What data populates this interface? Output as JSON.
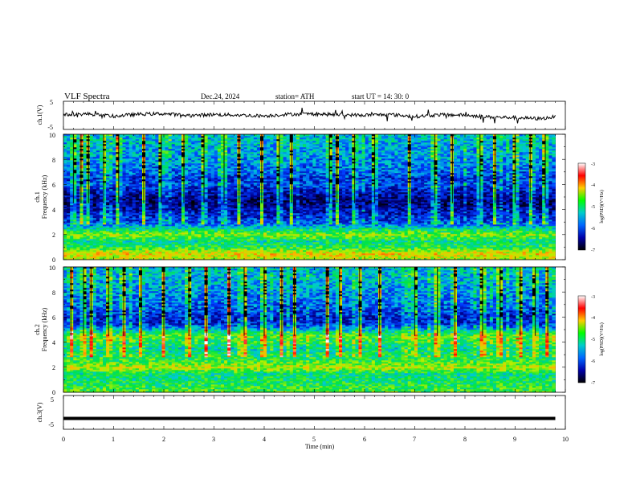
{
  "header": {
    "title": "VLF  Spectra",
    "date": "Dec.24, 2024",
    "station": "station= ATH",
    "start": "start  UT  =   14: 30: 0"
  },
  "colorbar": {
    "label": "log(PSD)(V²/Hz)",
    "ticks": [
      "-3",
      "-4",
      "-5",
      "-6",
      "-7"
    ],
    "colors": [
      "#ffffff",
      "#ff0000",
      "#ffcc00",
      "#00ff00",
      "#00cccc",
      "#0066ff",
      "#0000aa",
      "#000000"
    ]
  },
  "chart_data": [
    {
      "type": "line",
      "id": "ch1-waveform",
      "ylabel": "ch.1(V)",
      "ylim": [
        -5,
        5
      ],
      "yticks": [
        "5",
        "-5"
      ],
      "x": [
        0,
        0.5,
        1,
        1.5,
        2,
        2.5,
        3,
        3.5,
        4,
        4.5,
        5,
        5.5,
        6,
        6.5,
        7,
        7.5,
        8,
        8.5,
        9,
        9.5,
        9.8
      ],
      "series": [
        {
          "values": [
            0.2,
            0.5,
            -0.3,
            0.4,
            0.6,
            -0.1,
            0.3,
            0.1,
            -0.2,
            0.4,
            0.5,
            0.2,
            0.1,
            0.3,
            -0.4,
            0.2,
            0.1,
            -0.6,
            -0.8,
            -1.2,
            -0.5
          ]
        }
      ]
    },
    {
      "type": "heatmap",
      "id": "ch1-spectrogram",
      "ylabel": "Frequency (kHz)",
      "channel_label": "ch.1",
      "ylim": [
        0,
        10
      ],
      "yticks": [
        "0",
        "2",
        "4",
        "6",
        "8",
        "10"
      ],
      "xlim": [
        0,
        9.8
      ],
      "profile_freq_khz": [
        0,
        0.5,
        1,
        1.5,
        2,
        2.5,
        3,
        3.5,
        4,
        4.5,
        5,
        5.5,
        6,
        6.5,
        7,
        7.5,
        8,
        8.5,
        9,
        9.5,
        10
      ],
      "profile_log_psd": [
        -4.5,
        -4.2,
        -5.0,
        -5.2,
        -4.6,
        -5.3,
        -6.0,
        -6.2,
        -6.4,
        -6.6,
        -6.5,
        -6.3,
        -6.0,
        -6.1,
        -5.9,
        -5.8,
        -5.7,
        -5.6,
        -5.6,
        -5.5,
        -5.5
      ],
      "impulse_times_min": [
        0.2,
        0.35,
        0.5,
        0.8,
        1.1,
        1.6,
        1.95,
        2.4,
        2.8,
        3.2,
        3.5,
        3.95,
        4.3,
        4.55,
        5.3,
        5.45,
        5.8,
        6.2,
        6.9,
        7.4,
        7.75,
        8.3,
        8.6,
        9.0,
        9.3,
        9.6
      ]
    },
    {
      "type": "heatmap",
      "id": "ch2-spectrogram",
      "ylabel": "Frequency (kHz)",
      "channel_label": "ch.2",
      "ylim": [
        0,
        10
      ],
      "yticks": [
        "0",
        "2",
        "4",
        "6",
        "8",
        "10"
      ],
      "xlim": [
        0,
        9.8
      ],
      "profile_freq_khz": [
        0,
        0.5,
        1,
        1.5,
        2,
        2.5,
        3,
        3.5,
        4,
        4.5,
        5,
        5.5,
        6,
        6.5,
        7,
        7.5,
        8,
        8.5,
        9,
        9.5,
        10
      ],
      "profile_log_psd": [
        -4.8,
        -5.0,
        -5.1,
        -5.2,
        -4.4,
        -4.9,
        -5.1,
        -5.3,
        -5.0,
        -4.8,
        -5.5,
        -6.2,
        -6.2,
        -6.0,
        -5.9,
        -5.8,
        -5.7,
        -5.6,
        -5.5,
        -5.5,
        -5.5
      ],
      "impulse_times_min": [
        0.15,
        0.4,
        0.55,
        0.9,
        1.2,
        1.55,
        2.0,
        2.5,
        2.85,
        3.3,
        3.6,
        4.0,
        4.35,
        4.6,
        5.25,
        5.5,
        5.9,
        6.3,
        7.0,
        7.45,
        7.8,
        8.35,
        8.7,
        9.1,
        9.4,
        9.65
      ]
    },
    {
      "type": "line",
      "id": "ch3-waveform",
      "ylabel": "ch.3(V)",
      "ylim": [
        -5,
        5
      ],
      "yticks": [
        "5",
        "-5"
      ],
      "x": [
        0,
        9.8
      ],
      "series": [
        {
          "values": [
            -1.8,
            -1.8
          ]
        }
      ]
    }
  ],
  "time_axis": {
    "xlabel": "Time  (min)",
    "xlim": [
      0,
      10
    ],
    "ticks": [
      "0",
      "1",
      "2",
      "3",
      "4",
      "5",
      "6",
      "7",
      "8",
      "9",
      "10"
    ]
  }
}
